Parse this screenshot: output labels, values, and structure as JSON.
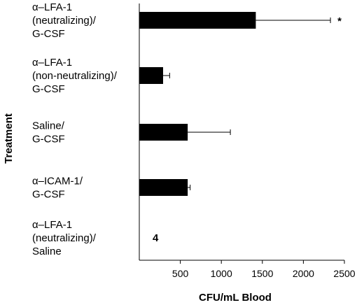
{
  "chart_data": {
    "type": "bar",
    "orientation": "horizontal",
    "xlabel": "CFU/mL Blood",
    "ylabel": "Treatment",
    "xlim": [
      0,
      2500
    ],
    "xticks": [
      500,
      1000,
      1500,
      2000,
      2500
    ],
    "grid": false,
    "bar_color": "#000000",
    "categories": [
      [
        "α–LFA-1",
        "(neutralizing)/",
        "G-CSF"
      ],
      [
        "α–LFA-1",
        "(non-neutralizing)/",
        "G-CSF"
      ],
      [
        "Saline/",
        "G-CSF"
      ],
      [
        "α–ICAM-1/",
        "G-CSF"
      ],
      [
        "α–LFA-1",
        "(neutralizing)/",
        "Saline"
      ]
    ],
    "values": [
      1420,
      290,
      590,
      590,
      4
    ],
    "error_plus": [
      910,
      80,
      520,
      30,
      null
    ],
    "annotations": [
      "*",
      "",
      "",
      "",
      "4"
    ]
  }
}
